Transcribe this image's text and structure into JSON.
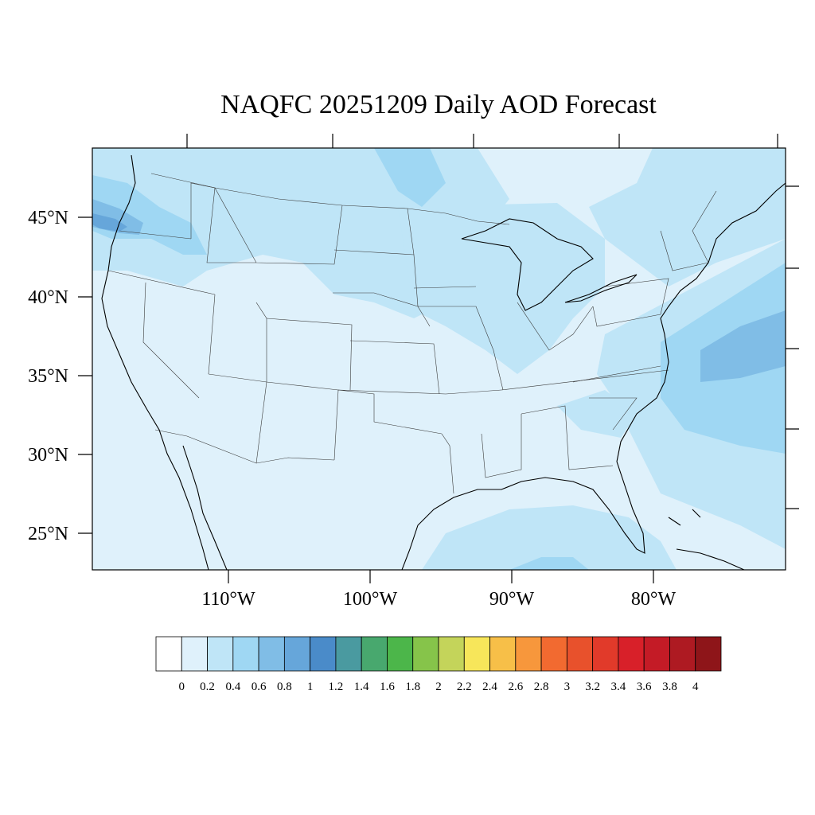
{
  "title": "NAQFC 20251209 Daily AOD Forecast",
  "map": {
    "projection": "lambert-conformal",
    "region": "Contiguous United States",
    "background_level": 0.2,
    "lat_labels": [
      "25°N",
      "30°N",
      "35°N",
      "40°N",
      "45°N"
    ],
    "lon_labels": [
      "110°W",
      "100°W",
      "90°W",
      "80°W"
    ],
    "field_regions": [
      {
        "name": "pacific-northwest",
        "level": 0.6
      },
      {
        "name": "oregon-coast-core",
        "level": 0.8
      },
      {
        "name": "northern-plains",
        "level": 0.4
      },
      {
        "name": "upper-midwest",
        "level": 0.4
      },
      {
        "name": "northeast",
        "level": 0.4
      },
      {
        "name": "atlantic-offshore",
        "level": 0.6
      },
      {
        "name": "atlantic-core",
        "level": 0.8
      },
      {
        "name": "gulf-of-mexico",
        "level": 0.4
      },
      {
        "name": "florida-south",
        "level": 0.4
      }
    ]
  },
  "colorbar": {
    "colors": [
      "#ffffff",
      "#dff1fb",
      "#bfe5f7",
      "#9fd7f3",
      "#80bde6",
      "#66a6da",
      "#4a8bc9",
      "#4a9aa0",
      "#48a86e",
      "#4cb64a",
      "#86c44a",
      "#c4d45a",
      "#f7e65a",
      "#f7bf48",
      "#f7973c",
      "#f26a30",
      "#e8512c",
      "#e13a2a",
      "#d82029",
      "#c41b26",
      "#ae1a22",
      "#8e1519"
    ],
    "labels": [
      "0",
      "0.2",
      "0.4",
      "0.6",
      "0.8",
      "1",
      "1.2",
      "1.4",
      "1.6",
      "1.8",
      "2",
      "2.2",
      "2.4",
      "2.6",
      "2.8",
      "3",
      "3.2",
      "3.4",
      "3.6",
      "3.8",
      "4"
    ]
  }
}
